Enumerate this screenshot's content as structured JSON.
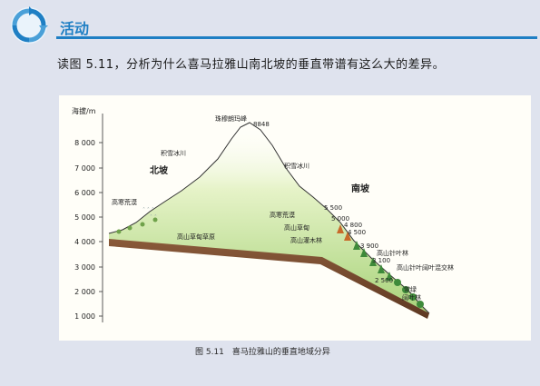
{
  "activity": {
    "label": "活动"
  },
  "instruction": "读图 5.11，分析为什么喜马拉雅山南北坡的垂直带谱有这么大的差异。",
  "figure": {
    "y_axis_label": "海拔/m",
    "y_ticks": [
      "8 000",
      "7 000",
      "6 000",
      "5 000",
      "4 000",
      "3 000",
      "2 000",
      "1 000"
    ],
    "peak_name": "珠穆朗玛峰",
    "peak_elevation": "8848",
    "north": {
      "slope_label": "北坡",
      "zones": [
        "积雪冰川",
        "高寒荒漠",
        "高山草甸草原"
      ]
    },
    "south": {
      "slope_label": "南坡",
      "zones": [
        "积雪冰川",
        "高寒荒漠",
        "高山草甸",
        "高山灌木林",
        "高山针叶林",
        "高山针叶阔叶混交林",
        "常绿",
        "阔叶林"
      ],
      "boundary_elevations": [
        "5 500",
        "5 000",
        "4 800",
        "4 500",
        "3 900",
        "3 100",
        "2 500"
      ]
    },
    "caption": "图 5.11　喜马拉雅山的垂直地域分异"
  },
  "colors": {
    "header_blue": "#1f7fc4",
    "ground_brown": "#7a4a30",
    "vegetation_green": "#a8d37a"
  }
}
